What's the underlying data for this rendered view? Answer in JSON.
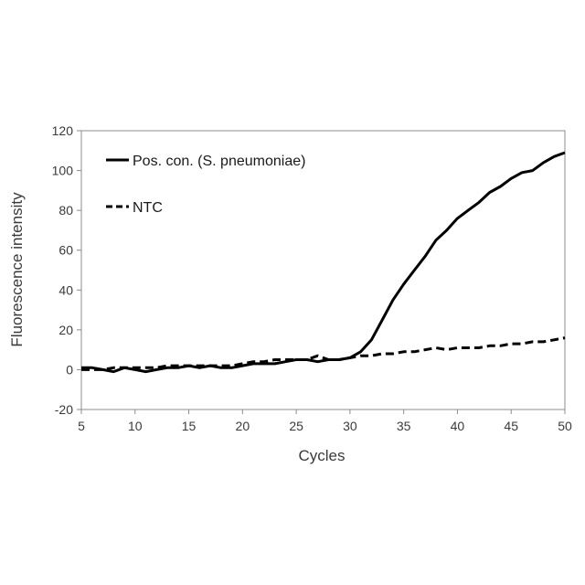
{
  "chart_data": {
    "type": "line",
    "xlabel": "Cycles",
    "ylabel": "Fluorescence intensity",
    "xlim": [
      5,
      50
    ],
    "ylim": [
      -20,
      120
    ],
    "xticks": [
      5,
      10,
      15,
      20,
      25,
      30,
      35,
      40,
      45,
      50
    ],
    "yticks": [
      -20,
      0,
      20,
      40,
      60,
      80,
      100,
      120
    ],
    "grid": false,
    "legend_position": "top-left",
    "series": [
      {
        "name": "Pos. con. (S. pneumoniae)",
        "line_style": "solid",
        "color": "#000000",
        "x": [
          5,
          6,
          7,
          8,
          9,
          10,
          11,
          12,
          13,
          14,
          15,
          16,
          17,
          18,
          19,
          20,
          21,
          22,
          23,
          24,
          25,
          26,
          27,
          28,
          29,
          30,
          31,
          32,
          33,
          34,
          35,
          36,
          37,
          38,
          39,
          40,
          41,
          42,
          43,
          44,
          45,
          46,
          47,
          48,
          49,
          50
        ],
        "y": [
          1,
          1,
          0,
          -1,
          1,
          0,
          -1,
          0,
          1,
          1,
          2,
          1,
          2,
          1,
          1,
          2,
          3,
          3,
          3,
          4,
          5,
          5,
          4,
          5,
          5,
          6,
          9,
          15,
          25,
          35,
          43,
          50,
          57,
          65,
          70,
          76,
          80,
          84,
          89,
          92,
          96,
          99,
          100,
          104,
          107,
          109
        ]
      },
      {
        "name": "NTC",
        "line_style": "dashed",
        "color": "#000000",
        "x": [
          5,
          6,
          7,
          8,
          9,
          10,
          11,
          12,
          13,
          14,
          15,
          16,
          17,
          18,
          19,
          20,
          21,
          22,
          23,
          24,
          25,
          26,
          27,
          28,
          29,
          30,
          31,
          32,
          33,
          34,
          35,
          36,
          37,
          38,
          39,
          40,
          41,
          42,
          43,
          44,
          45,
          46,
          47,
          48,
          49,
          50
        ],
        "y": [
          0,
          0,
          0,
          1,
          1,
          1,
          1,
          1,
          2,
          2,
          2,
          2,
          2,
          2,
          2,
          3,
          4,
          4,
          5,
          5,
          5,
          5,
          7,
          5,
          5,
          6,
          7,
          7,
          8,
          8,
          9,
          9,
          10,
          11,
          10,
          11,
          11,
          11,
          12,
          12,
          13,
          13,
          14,
          14,
          15,
          16
        ]
      }
    ]
  }
}
